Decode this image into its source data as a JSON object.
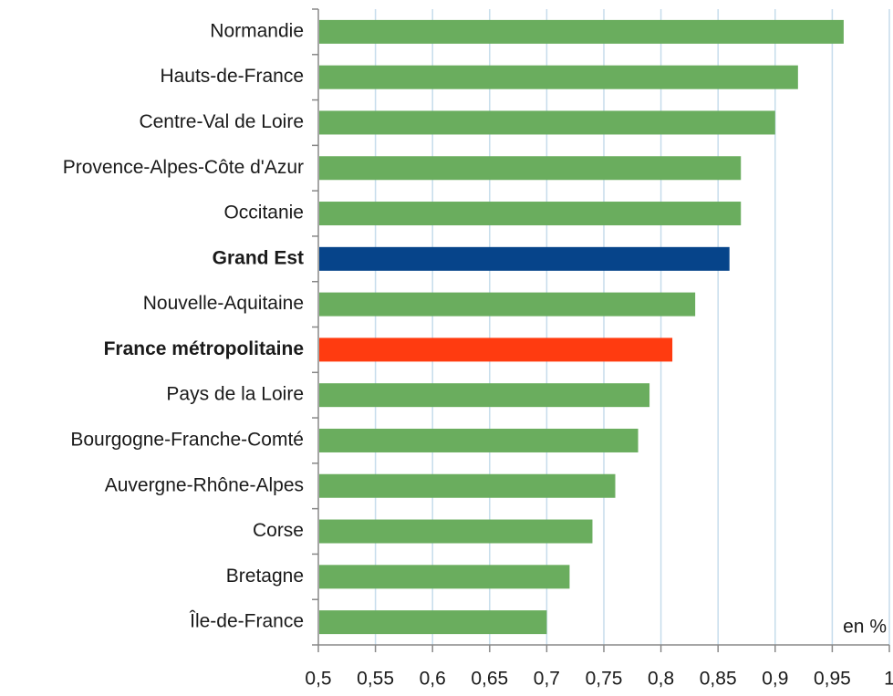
{
  "chart_data": {
    "type": "barh",
    "categories": [
      "Normandie",
      "Hauts-de-France",
      "Centre-Val de Loire",
      "Provence-Alpes-Côte d'Azur",
      "Occitanie",
      "Grand Est",
      "Nouvelle-Aquitaine",
      "France métropolitaine",
      "Pays de la Loire",
      "Bourgogne-Franche-Comté",
      "Auvergne-Rhône-Alpes",
      "Corse",
      "Bretagne",
      "Île-de-France"
    ],
    "values": [
      0.96,
      0.92,
      0.9,
      0.87,
      0.87,
      0.86,
      0.83,
      0.81,
      0.79,
      0.78,
      0.76,
      0.74,
      0.72,
      0.7
    ],
    "color": "#6aad5e",
    "colors": [
      "#6aad5e",
      "#6aad5e",
      "#6aad5e",
      "#6aad5e",
      "#6aad5e",
      "#06448a",
      "#6aad5e",
      "#ff3b10",
      "#6aad5e",
      "#6aad5e",
      "#6aad5e",
      "#6aad5e",
      "#6aad5e",
      "#6aad5e"
    ],
    "xlim": [
      0.5,
      1
    ],
    "xticks": [
      {
        "value": 0.5,
        "label": "0,5"
      },
      {
        "value": 0.55,
        "label": "0,55"
      },
      {
        "value": 0.6,
        "label": "0,6"
      },
      {
        "value": 0.65,
        "label": "0,65"
      },
      {
        "value": 0.7,
        "label": "0,7"
      },
      {
        "value": 0.75,
        "label": "0,75"
      },
      {
        "value": 0.8,
        "label": "0,8"
      },
      {
        "value": 0.85,
        "label": "0,85"
      },
      {
        "value": 0.9,
        "label": "0,9"
      },
      {
        "value": 0.95,
        "label": "0,95"
      },
      1
    ],
    "grid": true,
    "annotation": "en %"
  }
}
